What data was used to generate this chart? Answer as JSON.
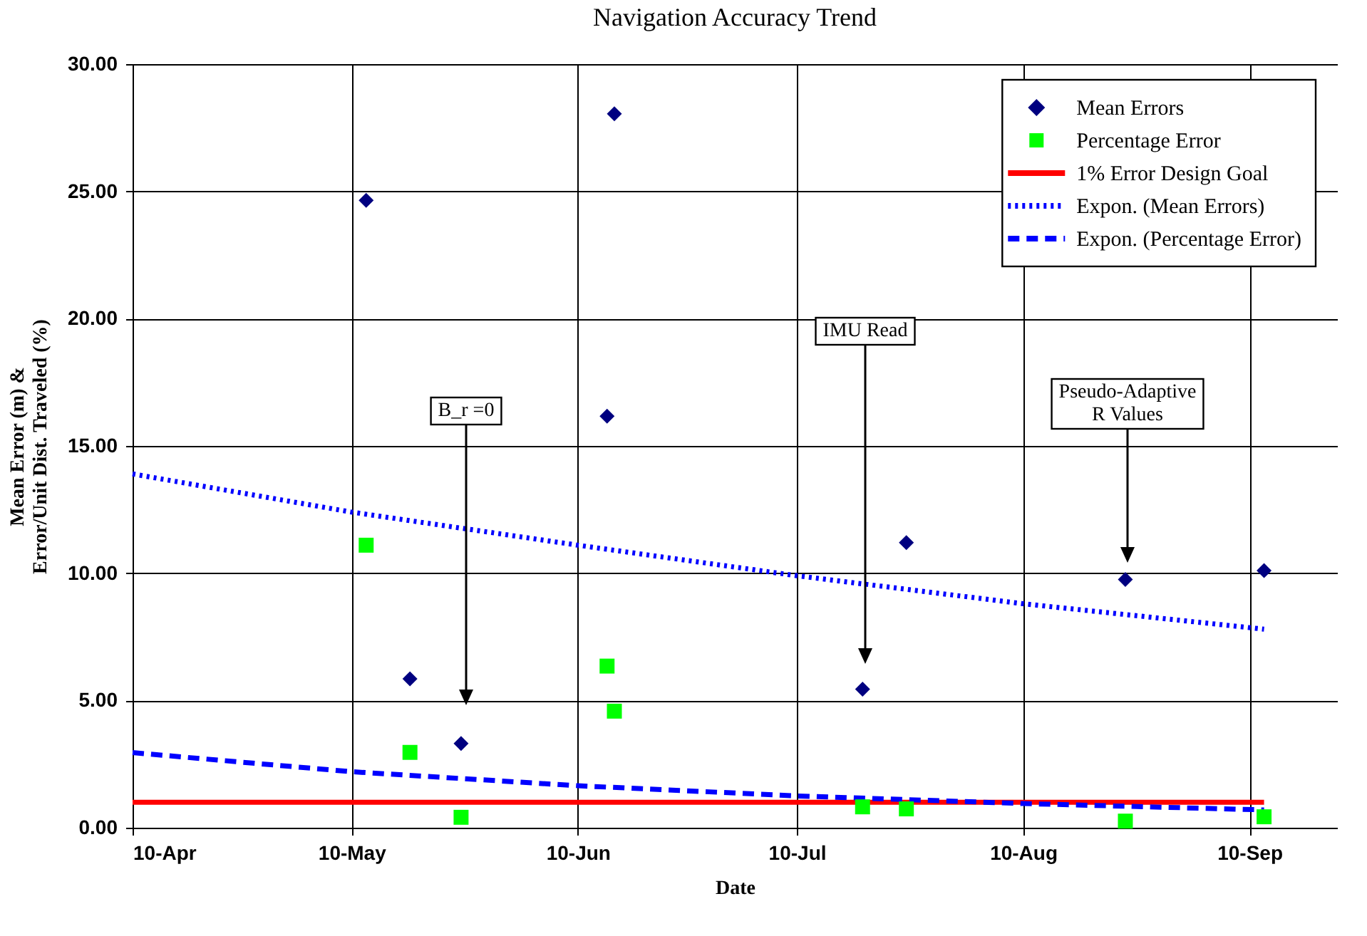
{
  "chart_data": {
    "type": "scatter",
    "title": "Navigation Accuracy Trend",
    "xlabel": "Date",
    "ylabel": "Mean Error (m) &\nError/Unit Dist. Traveled (%)",
    "xlim": [
      "--04-10",
      "--09-22"
    ],
    "xticks": [
      {
        "value": "--04-10",
        "label": "10-Apr"
      },
      {
        "value": "--05-10",
        "label": "10-May"
      },
      {
        "value": "--06-10",
        "label": "10-Jun"
      },
      {
        "value": "--07-10",
        "label": "10-Jul"
      },
      {
        "value": "--08-10",
        "label": "10-Aug"
      },
      {
        "value": "--09-10",
        "label": "10-Sep"
      }
    ],
    "ylim": [
      0,
      30
    ],
    "yticks": [
      {
        "value": 0,
        "label": "0.00"
      },
      {
        "value": 5,
        "label": "5.00"
      },
      {
        "value": 10,
        "label": "10.00"
      },
      {
        "value": 15,
        "label": "15.00"
      },
      {
        "value": 20,
        "label": "20.00"
      },
      {
        "value": 25,
        "label": "25.00"
      },
      {
        "value": 30,
        "label": "30.00"
      }
    ],
    "grid": true,
    "legend": "top right",
    "annotations": [
      "B_r =0",
      "IMU Read",
      "Pseudo-Adaptive\nR Values"
    ],
    "series": [
      {
        "name": "Mean Errors",
        "type": "scatter",
        "marker": "diamond",
        "color": "#000080",
        "x": [
          "--05-12",
          "--05-18",
          "--05-25",
          "--06-14",
          "--06-15",
          "--07-19",
          "--07-25",
          "--08-24",
          "--09-12"
        ],
        "values": [
          24.65,
          5.85,
          3.31,
          16.17,
          28.05,
          5.44,
          11.2,
          9.75,
          10.1
        ]
      },
      {
        "name": "Percentage Error",
        "type": "scatter",
        "marker": "square",
        "color": "#00ff00",
        "x": [
          "--05-12",
          "--05-18",
          "--05-25",
          "--06-14",
          "--06-15",
          "--07-19",
          "--07-25",
          "--08-24",
          "--09-12"
        ],
        "values": [
          11.1,
          2.96,
          0.41,
          6.35,
          4.58,
          0.82,
          0.74,
          0.26,
          0.43
        ]
      },
      {
        "name": "1% Error Design Goal",
        "type": "line",
        "line_style": "solid",
        "color": "#ff0000",
        "x": [
          "--04-10",
          "--09-12"
        ],
        "values": [
          1,
          1
        ]
      },
      {
        "name": "Expon. (Mean Errors)",
        "type": "line",
        "line_style": "dotted",
        "color": "#0000ff",
        "x": [
          "--04-10",
          "--05-10",
          "--06-10",
          "--07-10",
          "--08-10",
          "--09-12"
        ],
        "values": [
          13.9,
          12.4,
          11.1,
          9.9,
          8.8,
          7.8
        ]
      },
      {
        "name": "Expon. (Percentage Error)",
        "type": "line",
        "line_style": "dashed",
        "color": "#0000ff",
        "x": [
          "--04-10",
          "--05-10",
          "--06-10",
          "--07-10",
          "--08-10",
          "--09-12"
        ],
        "values": [
          2.95,
          2.2,
          1.65,
          1.25,
          0.95,
          0.7
        ]
      }
    ]
  }
}
